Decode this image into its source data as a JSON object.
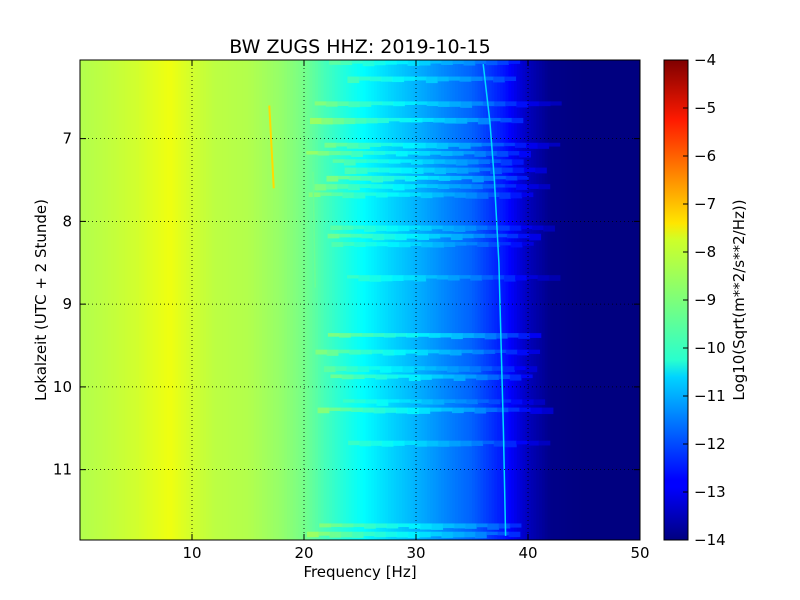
{
  "chart_data": {
    "type": "heatmap",
    "title": "BW ZUGS HHZ: 2019-10-15",
    "xlabel": "Frequency [Hz]",
    "ylabel": "Lokalzeit (UTC + 2 Stunde)",
    "xlim": [
      0,
      50
    ],
    "ylim": [
      11.85,
      6.05
    ],
    "y_inverted": true,
    "xticks": [
      "10",
      "20",
      "30",
      "40",
      "50"
    ],
    "xtick_values": [
      10,
      20,
      30,
      40,
      50
    ],
    "yticks": [
      "7",
      "8",
      "9",
      "10",
      "11"
    ],
    "ytick_values": [
      7,
      8,
      9,
      10,
      11
    ],
    "grid": true,
    "colorbar": {
      "label": "Log10(Sqrt(m**2/s**2/Hz))",
      "range": [
        -14,
        -4
      ],
      "ticks": [
        "−4",
        "−5",
        "−6",
        "−7",
        "−8",
        "−9",
        "−10",
        "−11",
        "−12",
        "−13",
        "−14"
      ],
      "tick_values": [
        -4,
        -5,
        -6,
        -7,
        -8,
        -9,
        -10,
        -11,
        -12,
        -13,
        -14
      ],
      "colormap": "jet"
    },
    "spectrum_profile": {
      "frequency_hz": [
        0,
        2,
        5,
        8,
        10,
        12,
        15,
        18,
        20,
        22,
        25,
        28,
        30,
        33,
        35,
        38,
        40,
        42,
        45,
        50
      ],
      "log10_amplitude": [
        -8.5,
        -8.4,
        -8.2,
        -7.9,
        -8.2,
        -8.4,
        -8.5,
        -8.8,
        -9.1,
        -9.6,
        -10.2,
        -10.7,
        -11.0,
        -11.5,
        -11.8,
        -12.6,
        -13.4,
        -13.9,
        -14.0,
        -14.0
      ]
    }
  }
}
